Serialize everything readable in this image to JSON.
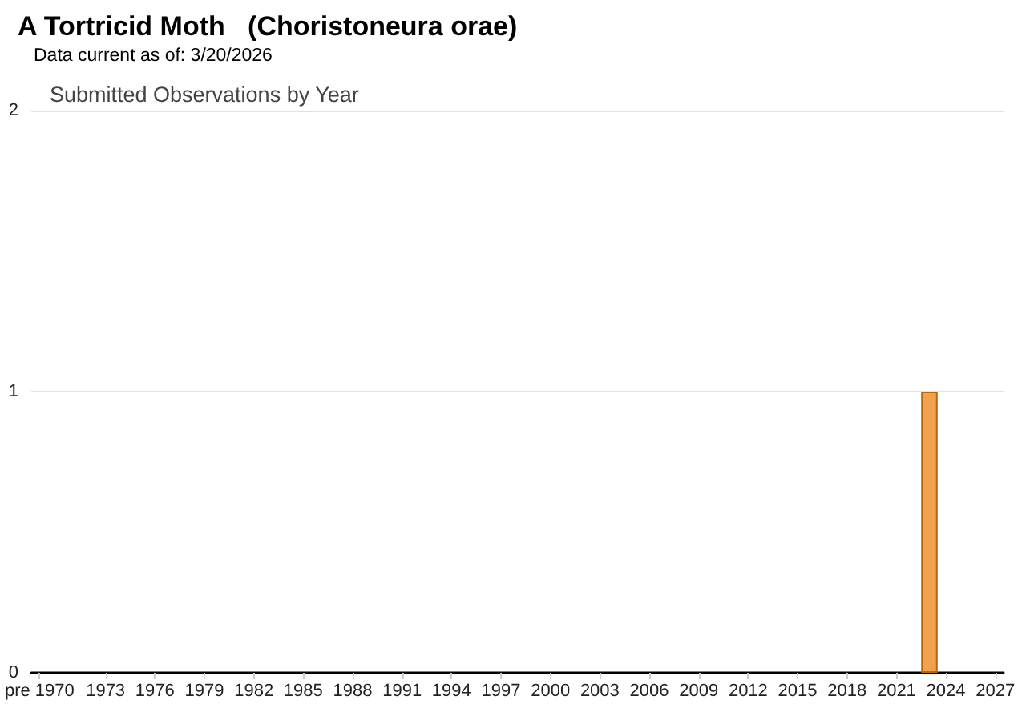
{
  "chart_data": {
    "type": "bar",
    "title": "A Tortricid Moth   (Choristoneura orae)",
    "subtitle": "Data current as of: 3/20/2026",
    "annotations": [
      "Submitted Observations by Year"
    ],
    "categories": [
      "pre 1970",
      null,
      null,
      null,
      "1973",
      null,
      null,
      "1976",
      null,
      null,
      "1979",
      null,
      null,
      "1982",
      null,
      null,
      "1985",
      null,
      null,
      "1988",
      null,
      null,
      "1991",
      null,
      null,
      "1994",
      null,
      null,
      "1997",
      null,
      null,
      "2000",
      null,
      null,
      "2003",
      null,
      null,
      "2006",
      null,
      null,
      "2009",
      null,
      null,
      "2012",
      null,
      null,
      "2015",
      null,
      null,
      "2018",
      null,
      null,
      "2021",
      null,
      null,
      "2024",
      null,
      null,
      "2027"
    ],
    "values": [
      0,
      0,
      0,
      0,
      0,
      0,
      0,
      0,
      0,
      0,
      0,
      0,
      0,
      0,
      0,
      0,
      0,
      0,
      0,
      0,
      0,
      0,
      0,
      0,
      0,
      0,
      0,
      0,
      0,
      0,
      0,
      0,
      0,
      0,
      0,
      0,
      0,
      0,
      0,
      0,
      0,
      0,
      0,
      0,
      0,
      0,
      0,
      0,
      0,
      0,
      0,
      0,
      0,
      0,
      1,
      0,
      0,
      0,
      0
    ],
    "color": "#f0a24f",
    "ylim": [
      0,
      2
    ],
    "yticks": [
      0,
      1,
      2
    ],
    "grid": "y"
  }
}
